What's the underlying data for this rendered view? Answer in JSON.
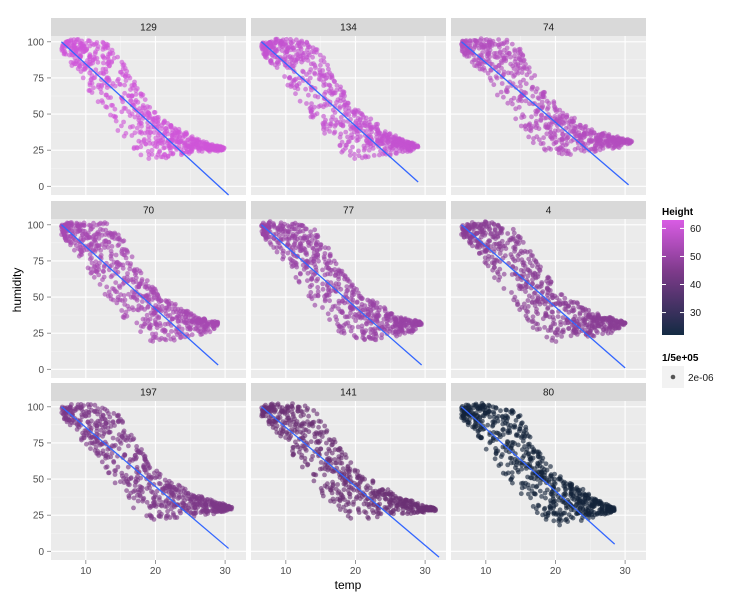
{
  "chart_data": {
    "type": "scatter",
    "layout": "facet_wrap",
    "xlabel": "temp",
    "ylabel": "humidity",
    "xlim": [
      5,
      33
    ],
    "ylim": [
      -6,
      104
    ],
    "x_ticks": [
      10,
      20,
      30
    ],
    "y_ticks": [
      0,
      25,
      50,
      75,
      100
    ],
    "grid": true,
    "panel_background": "#ebebeb",
    "grid_color": "#ffffff",
    "strip_background": "#d9d9d9",
    "smooth_line_color": "#3366ff",
    "facets": [
      {
        "label": "129",
        "height": 63,
        "color": "#cf56d8",
        "line": {
          "x": [
            6.5,
            30.5
          ],
          "y": [
            100,
            -6
          ]
        },
        "cloud": {
          "upper": [
            [
              6.5,
              100
            ],
            [
              8,
              102
            ],
            [
              13,
              101
            ],
            [
              15,
              92
            ],
            [
              17,
              72
            ],
            [
              19,
              57
            ],
            [
              21,
              46
            ],
            [
              24,
              38
            ],
            [
              26,
              32
            ],
            [
              28.5,
              28
            ],
            [
              30,
              26
            ]
          ],
          "lower": [
            [
              6.5,
              93
            ],
            [
              9,
              78
            ],
            [
              11,
              62
            ],
            [
              14,
              42
            ],
            [
              17,
              24
            ],
            [
              19,
              20
            ],
            [
              21,
              19
            ],
            [
              24,
              22
            ],
            [
              26,
              24
            ],
            [
              28.5,
              24
            ],
            [
              30,
              26
            ]
          ]
        }
      },
      {
        "label": "134",
        "height": 61,
        "color": "#c452d0",
        "line": {
          "x": [
            6.5,
            29
          ],
          "y": [
            100,
            3
          ]
        },
        "cloud": {
          "upper": [
            [
              6.5,
              100
            ],
            [
              8,
              102
            ],
            [
              13,
              101
            ],
            [
              15,
              94
            ],
            [
              17,
              74
            ],
            [
              19,
              60
            ],
            [
              21,
              50
            ],
            [
              24,
              40
            ],
            [
              26,
              34
            ],
            [
              28,
              30
            ],
            [
              29,
              28
            ]
          ],
          "lower": [
            [
              6.5,
              93
            ],
            [
              9,
              80
            ],
            [
              11,
              65
            ],
            [
              14,
              45
            ],
            [
              17,
              27
            ],
            [
              19,
              20
            ],
            [
              21,
              19
            ],
            [
              24,
              21
            ],
            [
              26,
              23
            ],
            [
              28,
              25
            ],
            [
              29,
              28
            ]
          ]
        }
      },
      {
        "label": "74",
        "height": 58,
        "color": "#b34dbf",
        "line": {
          "x": [
            6.5,
            30.5
          ],
          "y": [
            100,
            1
          ]
        },
        "cloud": {
          "upper": [
            [
              6.5,
              100
            ],
            [
              8,
              102
            ],
            [
              13,
              101
            ],
            [
              15,
              94
            ],
            [
              17,
              77
            ],
            [
              19,
              62
            ],
            [
              21,
              52
            ],
            [
              24,
              43
            ],
            [
              26,
              37
            ],
            [
              29,
              34
            ],
            [
              31,
              31
            ]
          ],
          "lower": [
            [
              6.5,
              93
            ],
            [
              9,
              80
            ],
            [
              11,
              66
            ],
            [
              14,
              47
            ],
            [
              17,
              29
            ],
            [
              19,
              22
            ],
            [
              21,
              21
            ],
            [
              24,
              23
            ],
            [
              26,
              25
            ],
            [
              29,
              27
            ],
            [
              31,
              31
            ]
          ]
        }
      },
      {
        "label": "70",
        "height": 56,
        "color": "#a648b2",
        "line": {
          "x": [
            6.5,
            29
          ],
          "y": [
            100,
            3
          ]
        },
        "cloud": {
          "upper": [
            [
              6.5,
              100
            ],
            [
              8,
              102
            ],
            [
              13,
              101
            ],
            [
              15,
              93
            ],
            [
              17,
              75
            ],
            [
              19,
              60
            ],
            [
              21,
              50
            ],
            [
              24,
              42
            ],
            [
              26,
              36
            ],
            [
              28,
              34
            ],
            [
              29,
              32
            ]
          ],
          "lower": [
            [
              6.5,
              92
            ],
            [
              9,
              79
            ],
            [
              11,
              64
            ],
            [
              14,
              44
            ],
            [
              17,
              27
            ],
            [
              19,
              20
            ],
            [
              21,
              19
            ],
            [
              24,
              22
            ],
            [
              26,
              24
            ],
            [
              28,
              26
            ],
            [
              29,
              32
            ]
          ]
        }
      },
      {
        "label": "77",
        "height": 53,
        "color": "#9842a4",
        "line": {
          "x": [
            6.5,
            29.5
          ],
          "y": [
            100,
            3
          ]
        },
        "cloud": {
          "upper": [
            [
              6.5,
              100
            ],
            [
              8,
              102
            ],
            [
              13,
              101
            ],
            [
              15,
              94
            ],
            [
              17,
              76
            ],
            [
              19,
              62
            ],
            [
              21,
              52
            ],
            [
              24,
              43
            ],
            [
              26,
              37
            ],
            [
              28,
              34
            ],
            [
              29.5,
              32
            ]
          ],
          "lower": [
            [
              6.5,
              93
            ],
            [
              9,
              80
            ],
            [
              11,
              65
            ],
            [
              14,
              46
            ],
            [
              17,
              28
            ],
            [
              19,
              20
            ],
            [
              21,
              19
            ],
            [
              24,
              22
            ],
            [
              26,
              24
            ],
            [
              28,
              26
            ],
            [
              29.5,
              32
            ]
          ]
        }
      },
      {
        "label": "4",
        "height": 50,
        "color": "#893d94",
        "line": {
          "x": [
            6.5,
            30
          ],
          "y": [
            100,
            1
          ]
        },
        "cloud": {
          "upper": [
            [
              6.5,
              100
            ],
            [
              8,
              102
            ],
            [
              13,
              101
            ],
            [
              15,
              94
            ],
            [
              17,
              77
            ],
            [
              19,
              63
            ],
            [
              21,
              53
            ],
            [
              24,
              44
            ],
            [
              26,
              38
            ],
            [
              28.5,
              34
            ],
            [
              30,
              32
            ]
          ],
          "lower": [
            [
              6.5,
              93
            ],
            [
              9,
              80
            ],
            [
              11,
              65
            ],
            [
              14,
              46
            ],
            [
              17,
              28
            ],
            [
              19,
              20
            ],
            [
              21,
              19
            ],
            [
              24,
              22
            ],
            [
              26,
              24
            ],
            [
              28.5,
              26
            ],
            [
              30,
              32
            ]
          ]
        }
      },
      {
        "label": "197",
        "height": 47,
        "color": "#7c3887",
        "line": {
          "x": [
            6.5,
            30.5
          ],
          "y": [
            100,
            2
          ]
        },
        "cloud": {
          "upper": [
            [
              6.5,
              100
            ],
            [
              8,
              102
            ],
            [
              13,
              101
            ],
            [
              15,
              94
            ],
            [
              17,
              77
            ],
            [
              19,
              63
            ],
            [
              21,
              53
            ],
            [
              24,
              44
            ],
            [
              26,
              38
            ],
            [
              29,
              34
            ],
            [
              31,
              30
            ]
          ],
          "lower": [
            [
              6.5,
              93
            ],
            [
              9,
              80
            ],
            [
              11,
              66
            ],
            [
              14,
              47
            ],
            [
              17,
              29
            ],
            [
              19,
              22
            ],
            [
              21,
              21
            ],
            [
              24,
              23
            ],
            [
              26,
              25
            ],
            [
              29,
              27
            ],
            [
              31,
              30
            ]
          ]
        }
      },
      {
        "label": "141",
        "height": 43,
        "color": "#6a3075",
        "line": {
          "x": [
            6.5,
            32
          ],
          "y": [
            100,
            -4
          ]
        },
        "cloud": {
          "upper": [
            [
              6.5,
              100
            ],
            [
              8,
              102
            ],
            [
              13,
              101
            ],
            [
              15,
              94
            ],
            [
              17,
              77
            ],
            [
              19,
              63
            ],
            [
              21,
              53
            ],
            [
              24,
              44
            ],
            [
              26,
              38
            ],
            [
              29,
              33
            ],
            [
              31.5,
              29
            ]
          ],
          "lower": [
            [
              6.5,
              93
            ],
            [
              9,
              80
            ],
            [
              11,
              66
            ],
            [
              14,
              47
            ],
            [
              17,
              29
            ],
            [
              19,
              22
            ],
            [
              21,
              21
            ],
            [
              24,
              23
            ],
            [
              26,
              25
            ],
            [
              29,
              26
            ],
            [
              31.5,
              29
            ]
          ]
        }
      },
      {
        "label": "80",
        "height": 22,
        "color": "#14233a",
        "line": {
          "x": [
            6.5,
            28.5
          ],
          "y": [
            100,
            5
          ]
        },
        "cloud": {
          "upper": [
            [
              6.5,
              100
            ],
            [
              8,
              102
            ],
            [
              13,
              101
            ],
            [
              15,
              93
            ],
            [
              17,
              75
            ],
            [
              19,
              60
            ],
            [
              21,
              51
            ],
            [
              24,
              42
            ],
            [
              26,
              36
            ],
            [
              27.5,
              32
            ],
            [
              28.5,
              29
            ]
          ],
          "lower": [
            [
              6.5,
              93
            ],
            [
              9,
              79
            ],
            [
              11,
              64
            ],
            [
              14,
              45
            ],
            [
              17,
              27
            ],
            [
              19,
              20
            ],
            [
              21,
              19
            ],
            [
              24,
              22
            ],
            [
              26,
              24
            ],
            [
              27.5,
              26
            ],
            [
              28.5,
              29
            ]
          ]
        }
      }
    ],
    "legend": {
      "placement": "right",
      "color_title": "Height",
      "color_range": [
        22,
        63
      ],
      "color_ticks": [
        30,
        40,
        50,
        60
      ],
      "gradient_low": "#132b43",
      "gradient_mid": "#7d3a8a",
      "gradient_high": "#d95ce4",
      "size_title": "1/5e+05",
      "size_label": "2e-06"
    }
  }
}
